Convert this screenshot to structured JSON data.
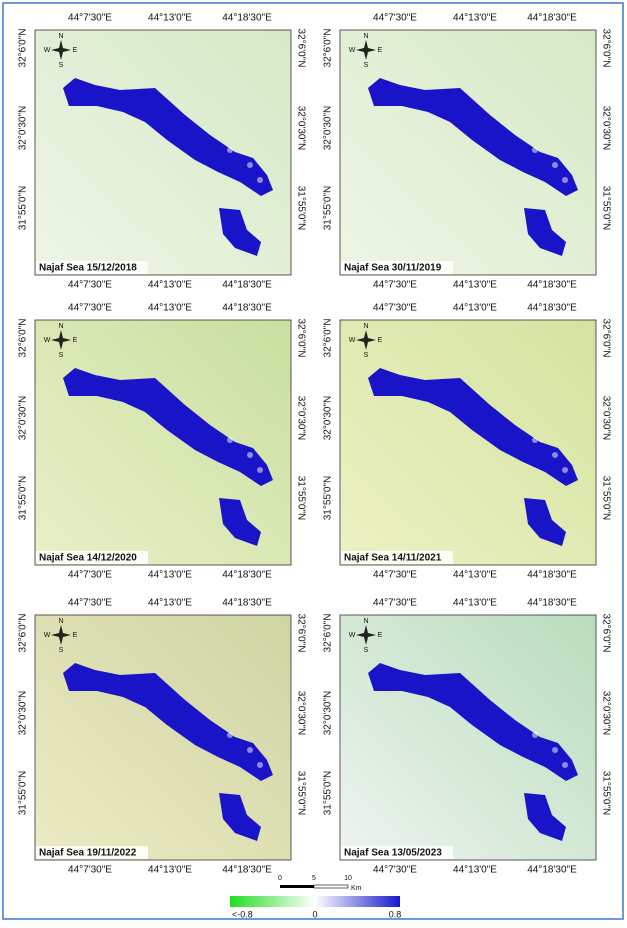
{
  "panels": [
    {
      "title": "Najaf Sea 15/12/2018"
    },
    {
      "title": "Najaf Sea 30/11/2019"
    },
    {
      "title": "Najaf Sea 14/12/2020"
    },
    {
      "title": "Najaf Sea 14/11/2021"
    },
    {
      "title": "Najaf Sea 19/11/2022"
    },
    {
      "title": "Najaf Sea 13/05/2023"
    }
  ],
  "axes": {
    "lon_labels": [
      "44°7'30\"E",
      "44°13'0\"E",
      "44°18'30\"E"
    ],
    "lat_labels": [
      "32°6'0\"N",
      "32°0'30\"N",
      "31°55'0\"N"
    ]
  },
  "compass": {
    "n": "N",
    "e": "E",
    "s": "S",
    "w": "W"
  },
  "legend": {
    "scale_labels": [
      "0",
      "5",
      "10"
    ],
    "scale_unit": "Km",
    "colorbar_labels": [
      "<-0.8",
      "0",
      "0.8"
    ]
  }
}
